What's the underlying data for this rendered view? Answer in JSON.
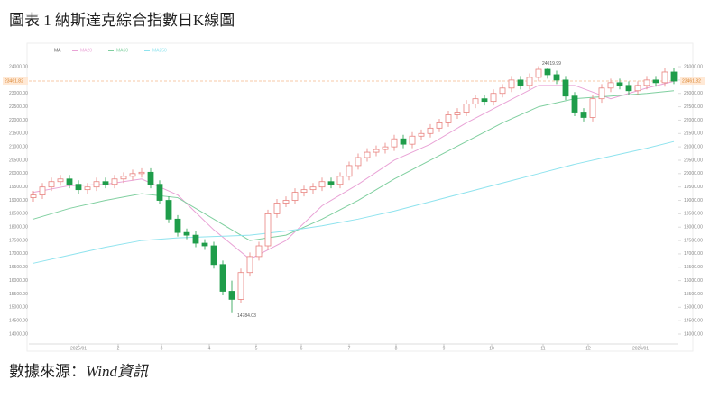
{
  "chart_data": {
    "type": "candlestick",
    "title": "圖表 1 納斯達克綜合指數日K線圖",
    "source": "數據來源：",
    "source_name": "Wind資訊",
    "legend_title": "MA",
    "up_color": "#e8837f",
    "down_color": "#1f9d4a",
    "candles": [
      [
        19100,
        19350,
        18950,
        19200
      ],
      [
        19200,
        19650,
        19050,
        19500
      ],
      [
        19500,
        19850,
        19350,
        19700
      ],
      [
        19700,
        19950,
        19550,
        19800
      ],
      [
        19800,
        19950,
        19450,
        19600
      ],
      [
        19600,
        19750,
        19250,
        19400
      ],
      [
        19400,
        19650,
        19250,
        19500
      ],
      [
        19500,
        19850,
        19350,
        19700
      ],
      [
        19700,
        19850,
        19450,
        19600
      ],
      [
        19600,
        19950,
        19450,
        19800
      ],
      [
        19800,
        20050,
        19650,
        19900
      ],
      [
        19900,
        20150,
        19750,
        20000
      ],
      [
        20000,
        20200,
        19850,
        20050
      ],
      [
        20050,
        20200,
        19450,
        19600
      ],
      [
        19600,
        19750,
        18850,
        19000
      ],
      [
        19000,
        19150,
        18150,
        18300
      ],
      [
        18300,
        18450,
        17650,
        17800
      ],
      [
        17800,
        17950,
        17550,
        17700
      ],
      [
        17700,
        17850,
        17250,
        17400
      ],
      [
        17400,
        17550,
        17150,
        17300
      ],
      [
        17300,
        17450,
        16450,
        16600
      ],
      [
        16600,
        16750,
        15450,
        15600
      ],
      [
        15600,
        16000,
        14784.03,
        15300
      ],
      [
        15300,
        16450,
        15150,
        16300
      ],
      [
        16300,
        17050,
        16150,
        16900
      ],
      [
        16900,
        17450,
        16750,
        17300
      ],
      [
        17300,
        18650,
        17150,
        18500
      ],
      [
        18500,
        19050,
        18350,
        18900
      ],
      [
        18900,
        19150,
        18750,
        19000
      ],
      [
        19000,
        19450,
        18850,
        19300
      ],
      [
        19300,
        19550,
        19150,
        19400
      ],
      [
        19400,
        19650,
        19250,
        19500
      ],
      [
        19500,
        19850,
        19350,
        19700
      ],
      [
        19700,
        19850,
        19450,
        19600
      ],
      [
        19600,
        20050,
        19450,
        19900
      ],
      [
        19900,
        20450,
        19750,
        20300
      ],
      [
        20300,
        20750,
        20150,
        20600
      ],
      [
        20600,
        20950,
        20450,
        20800
      ],
      [
        20800,
        21050,
        20650,
        20900
      ],
      [
        20900,
        21150,
        20750,
        21000
      ],
      [
        21000,
        21450,
        20850,
        21300
      ],
      [
        21300,
        21450,
        20950,
        21100
      ],
      [
        21100,
        21550,
        20950,
        21400
      ],
      [
        21400,
        21650,
        21250,
        21500
      ],
      [
        21500,
        21850,
        21350,
        21700
      ],
      [
        21700,
        22050,
        21550,
        21900
      ],
      [
        21900,
        22350,
        21750,
        22200
      ],
      [
        22200,
        22450,
        22050,
        22300
      ],
      [
        22300,
        22750,
        22150,
        22600
      ],
      [
        22600,
        22950,
        22450,
        22800
      ],
      [
        22800,
        22950,
        22550,
        22700
      ],
      [
        22700,
        23150,
        22550,
        23000
      ],
      [
        23000,
        23350,
        22850,
        23200
      ],
      [
        23200,
        23650,
        23050,
        23500
      ],
      [
        23500,
        23650,
        23150,
        23300
      ],
      [
        23300,
        23750,
        23150,
        23600
      ],
      [
        23600,
        24019.99,
        23450,
        23900
      ],
      [
        23900,
        23950,
        23550,
        23700
      ],
      [
        23700,
        23850,
        23350,
        23500
      ],
      [
        23500,
        23650,
        22750,
        22900
      ],
      [
        22900,
        23050,
        22150,
        22300
      ],
      [
        22300,
        22450,
        21950,
        22100
      ],
      [
        22100,
        22950,
        21950,
        22800
      ],
      [
        22800,
        23350,
        22650,
        23200
      ],
      [
        23200,
        23550,
        23050,
        23400
      ],
      [
        23400,
        23550,
        23150,
        23300
      ],
      [
        23300,
        23450,
        22950,
        23100
      ],
      [
        23100,
        23450,
        22950,
        23300
      ],
      [
        23300,
        23650,
        23150,
        23500
      ],
      [
        23500,
        23650,
        23250,
        23400
      ],
      [
        23400,
        23950,
        23250,
        23800
      ],
      [
        23800,
        23950,
        23350,
        23461.82
      ]
    ],
    "series": [
      {
        "name": "MA20",
        "color": "#e9a3d6",
        "x": [
          0,
          4,
          8,
          12,
          16,
          20,
          24,
          28,
          32,
          36,
          40,
          44,
          48,
          52,
          56,
          60,
          64,
          68,
          71
        ],
        "values": [
          19300,
          19550,
          19600,
          19800,
          19200,
          17900,
          16800,
          17500,
          18800,
          19600,
          20500,
          21100,
          21900,
          22600,
          23300,
          23300,
          22800,
          23200,
          23450
        ]
      },
      {
        "name": "MA60",
        "color": "#7fcf9f",
        "x": [
          0,
          4,
          8,
          12,
          16,
          20,
          24,
          28,
          32,
          36,
          40,
          44,
          48,
          52,
          56,
          60,
          64,
          68,
          71
        ],
        "values": [
          18300,
          18700,
          19000,
          19250,
          19100,
          18300,
          17500,
          17700,
          18300,
          19000,
          19800,
          20500,
          21200,
          21900,
          22500,
          22800,
          22900,
          23000,
          23100
        ]
      },
      {
        "name": "MA250",
        "color": "#8fe3ee",
        "x": [
          0,
          4,
          8,
          12,
          16,
          20,
          24,
          28,
          32,
          36,
          40,
          44,
          48,
          52,
          56,
          60,
          64,
          68,
          71
        ],
        "values": [
          16650,
          16950,
          17250,
          17500,
          17600,
          17650,
          17700,
          17850,
          18050,
          18300,
          18600,
          18950,
          19300,
          19650,
          20000,
          20350,
          20650,
          20950,
          21200
        ]
      }
    ],
    "annotations": [
      "24019.99",
      "14784.03"
    ],
    "last_price": {
      "value": 23461.82,
      "label": "23461.82"
    },
    "xlim": [
      -0.5,
      71.5
    ],
    "xticks": [
      {
        "value": 5,
        "label": "2025/01"
      },
      {
        "value": 9.4,
        "label": "2"
      },
      {
        "value": 14.2,
        "label": "3"
      },
      {
        "value": 19.5,
        "label": "4"
      },
      {
        "value": 24.7,
        "label": "5"
      },
      {
        "value": 29.7,
        "label": "6"
      },
      {
        "value": 35,
        "label": "7"
      },
      {
        "value": 40.2,
        "label": "8"
      },
      {
        "value": 45.5,
        "label": "9"
      },
      {
        "value": 50.8,
        "label": "10"
      },
      {
        "value": 56.5,
        "label": "11"
      },
      {
        "value": 61.5,
        "label": "12"
      },
      {
        "value": 67.3,
        "label": "2026/01"
      }
    ],
    "ylim": [
      13630,
      24540
    ],
    "yticks": [
      {
        "value": 14000,
        "label": "14000.00"
      },
      {
        "value": 14500,
        "label": "14500.00"
      },
      {
        "value": 15000,
        "label": "15000.00"
      },
      {
        "value": 15500,
        "label": "15500.00"
      },
      {
        "value": 16000,
        "label": "16000.00"
      },
      {
        "value": 16500,
        "label": "16500.00"
      },
      {
        "value": 17000,
        "label": "17000.00"
      },
      {
        "value": 17500,
        "label": "17500.00"
      },
      {
        "value": 18000,
        "label": "18000.00"
      },
      {
        "value": 18500,
        "label": "18500.00"
      },
      {
        "value": 19000,
        "label": "19000.00"
      },
      {
        "value": 19500,
        "label": "19500.00"
      },
      {
        "value": 20000,
        "label": "20000.00"
      },
      {
        "value": 20500,
        "label": "20500.00"
      },
      {
        "value": 21000,
        "label": "21000.00"
      },
      {
        "value": 21500,
        "label": "21500.00"
      },
      {
        "value": 22000,
        "label": "22000.00"
      },
      {
        "value": 22500,
        "label": "22500.00"
      },
      {
        "value": 23000,
        "label": "23000.00"
      },
      {
        "value": 23500,
        "label": "23500.00"
      },
      {
        "value": 24000,
        "label": "24000.00"
      }
    ],
    "grid": false
  }
}
